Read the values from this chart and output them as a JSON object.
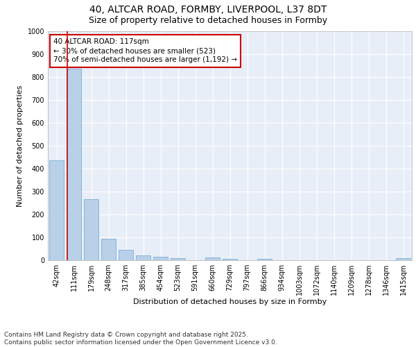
{
  "title_line1": "40, ALTCAR ROAD, FORMBY, LIVERPOOL, L37 8DT",
  "title_line2": "Size of property relative to detached houses in Formby",
  "xlabel": "Distribution of detached houses by size in Formby",
  "ylabel": "Number of detached properties",
  "categories": [
    "42sqm",
    "111sqm",
    "179sqm",
    "248sqm",
    "317sqm",
    "385sqm",
    "454sqm",
    "523sqm",
    "591sqm",
    "660sqm",
    "729sqm",
    "797sqm",
    "866sqm",
    "934sqm",
    "1003sqm",
    "1072sqm",
    "1140sqm",
    "1209sqm",
    "1278sqm",
    "1346sqm",
    "1415sqm"
  ],
  "values": [
    435,
    835,
    268,
    95,
    45,
    20,
    15,
    9,
    0,
    11,
    5,
    0,
    5,
    0,
    0,
    0,
    0,
    0,
    0,
    0,
    8
  ],
  "bar_color": "#b8d0e8",
  "bar_edge_color": "#7aafd4",
  "vline_color": "#cc0000",
  "annotation_text": "40 ALTCAR ROAD: 117sqm\n← 30% of detached houses are smaller (523)\n70% of semi-detached houses are larger (1,192) →",
  "annotation_box_color": "#ffffff",
  "annotation_box_edge_color": "#cc0000",
  "ylim": [
    0,
    1000
  ],
  "yticks": [
    0,
    100,
    200,
    300,
    400,
    500,
    600,
    700,
    800,
    900,
    1000
  ],
  "background_color": "#e8eef7",
  "grid_color": "#ffffff",
  "footer_text": "Contains HM Land Registry data © Crown copyright and database right 2025.\nContains public sector information licensed under the Open Government Licence v3.0.",
  "title_fontsize": 10,
  "subtitle_fontsize": 9,
  "axis_label_fontsize": 8,
  "tick_fontsize": 7,
  "annotation_fontsize": 7.5,
  "footer_fontsize": 6.5
}
